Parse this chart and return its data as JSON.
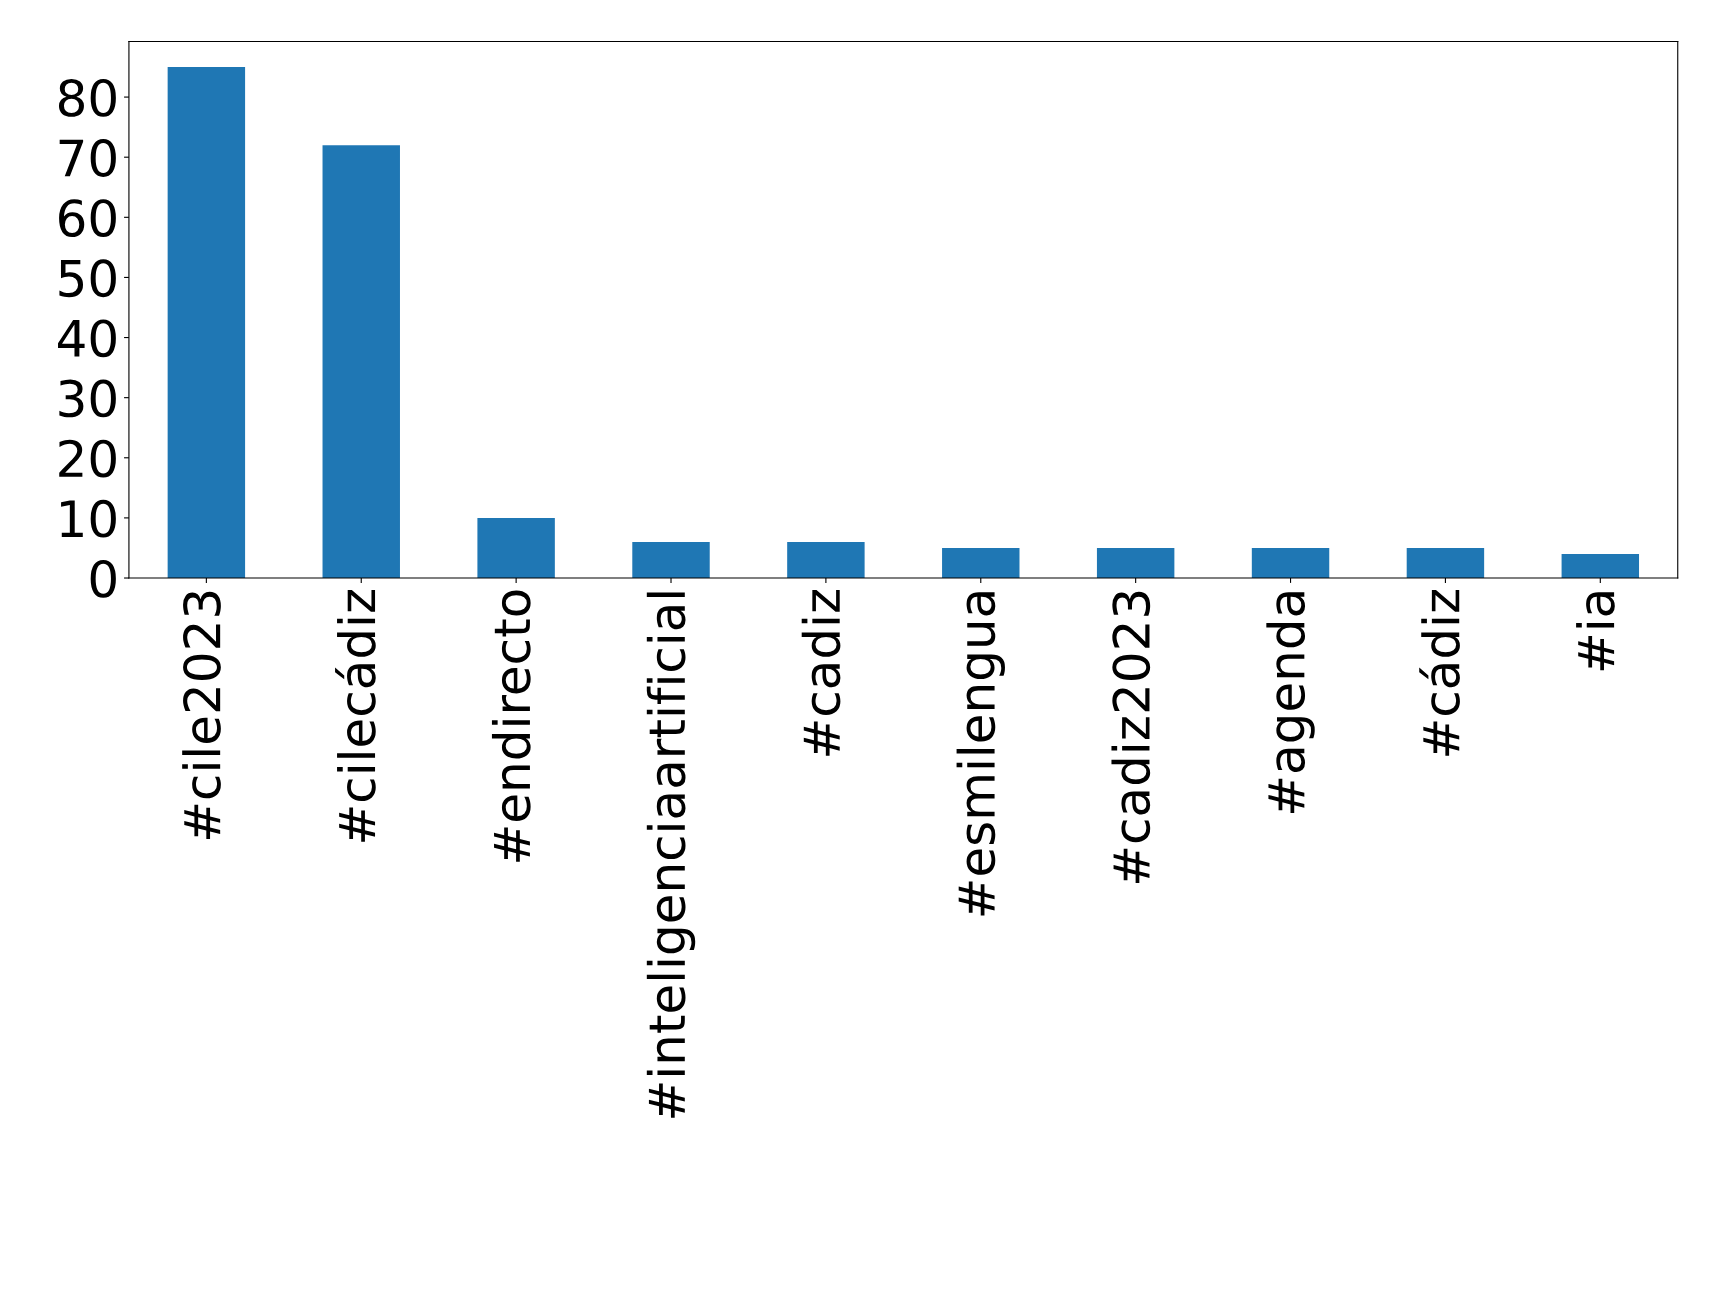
{
  "chart_data": {
    "type": "bar",
    "categories": [
      "#cile2023",
      "#cilecádiz",
      "#endirecto",
      "#inteligenciaartificial",
      "#cadiz",
      "#esmilengua",
      "#cadiz2023",
      "#agenda",
      "#cádiz",
      "#ia"
    ],
    "values": [
      85,
      72,
      10,
      6,
      6,
      5,
      5,
      5,
      5,
      4
    ],
    "color": "#1f77b4",
    "ylim": [
      0,
      89.25
    ],
    "yticks": [
      0,
      10,
      20,
      30,
      40,
      50,
      60,
      70,
      80
    ],
    "grid": false,
    "legend": false
  }
}
